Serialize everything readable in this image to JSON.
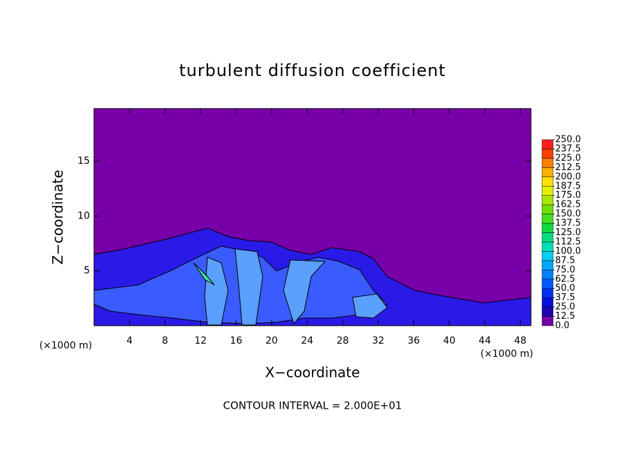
{
  "chart_data": {
    "type": "contour",
    "title": "turbulent diffusion coefficient",
    "x_label": "X−coordinate",
    "y_label": "Z−coordinate",
    "x_unit_left": "(×1000 m)",
    "x_unit_right": "(×1000 m)",
    "footnote": "CONTOUR INTERVAL = 2.000E+01",
    "xlim": [
      0,
      49.2
    ],
    "xticks": [
      4,
      8,
      12,
      16,
      20,
      24,
      28,
      32,
      36,
      40,
      44,
      48
    ],
    "ylim": [
      0,
      19.8
    ],
    "yticks": [
      5,
      10,
      15
    ],
    "colorbar": {
      "ticks": [
        {
          "value": 0,
          "label": "0.0"
        },
        {
          "value": 12.5,
          "label": "12.5"
        },
        {
          "value": 25,
          "label": "25.0"
        },
        {
          "value": 37.5,
          "label": "37.5"
        },
        {
          "value": 50,
          "label": "50.0"
        },
        {
          "value": 62.5,
          "label": "62.5"
        },
        {
          "value": 75,
          "label": "75.0"
        },
        {
          "value": 87.5,
          "label": "87.5"
        },
        {
          "value": 100,
          "label": "100.0"
        },
        {
          "value": 112.5,
          "label": "112.5"
        },
        {
          "value": 125,
          "label": "125.0"
        },
        {
          "value": 137.5,
          "label": "137.5"
        },
        {
          "value": 150,
          "label": "150.0"
        },
        {
          "value": 162.5,
          "label": "162.5"
        },
        {
          "value": 175,
          "label": "175.0"
        },
        {
          "value": 187.5,
          "label": "187.5"
        },
        {
          "value": 200,
          "label": "200.0"
        },
        {
          "value": 212.5,
          "label": "212.5"
        },
        {
          "value": 225,
          "label": "225.0"
        },
        {
          "value": 237.5,
          "label": "237.5"
        },
        {
          "value": 250,
          "label": "250.0"
        }
      ],
      "colors": [
        "#7400a6",
        "#2000b0",
        "#0010d8",
        "#0030f0",
        "#0058ff",
        "#0080ff",
        "#00a8ff",
        "#00d0f0",
        "#00e0b8",
        "#00e080",
        "#10d840",
        "#40e020",
        "#70e000",
        "#a8e800",
        "#e0f000",
        "#ffe000",
        "#ffb000",
        "#ff8000",
        "#ff4000",
        "#ff2020"
      ]
    }
  }
}
